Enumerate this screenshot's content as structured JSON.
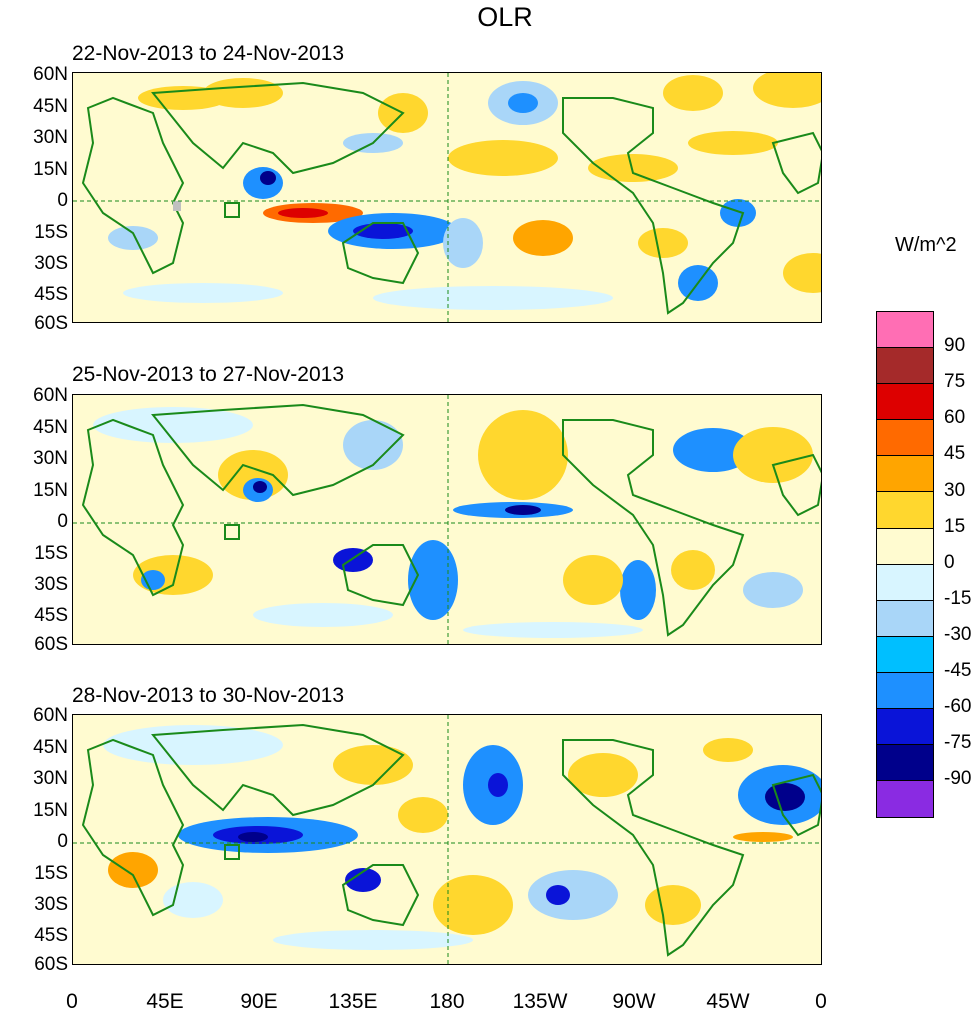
{
  "title": "OLR",
  "panels": [
    {
      "label": "22-Nov-2013 to 24-Nov-2013"
    },
    {
      "label": "25-Nov-2013 to 27-Nov-2013"
    },
    {
      "label": "28-Nov-2013 to 30-Nov-2013"
    }
  ],
  "lat_labels": [
    "60N",
    "45N",
    "30N",
    "15N",
    "0",
    "15S",
    "30S",
    "45S",
    "60S"
  ],
  "lon_labels": [
    "0",
    "45E",
    "90E",
    "135E",
    "180",
    "135W",
    "90W",
    "45W",
    "0"
  ],
  "colorbar": {
    "units": "W/m^2",
    "colors": [
      "#ff6eb4",
      "#a52a2a",
      "#dd0000",
      "#ff6a00",
      "#ffa500",
      "#ffd72e",
      "#fffbd0",
      "#d8f5ff",
      "#a9d6f8",
      "#00bfff",
      "#1e90ff",
      "#0a14d8",
      "#00008b",
      "#8a2be2"
    ],
    "labels": [
      "90",
      "75",
      "60",
      "45",
      "30",
      "15",
      "0",
      "-15",
      "-30",
      "-45",
      "-60",
      "-75",
      "-90"
    ]
  },
  "colors": {
    "coast": "#1a8a1a",
    "dashed_line": "#1a8a1a"
  }
}
